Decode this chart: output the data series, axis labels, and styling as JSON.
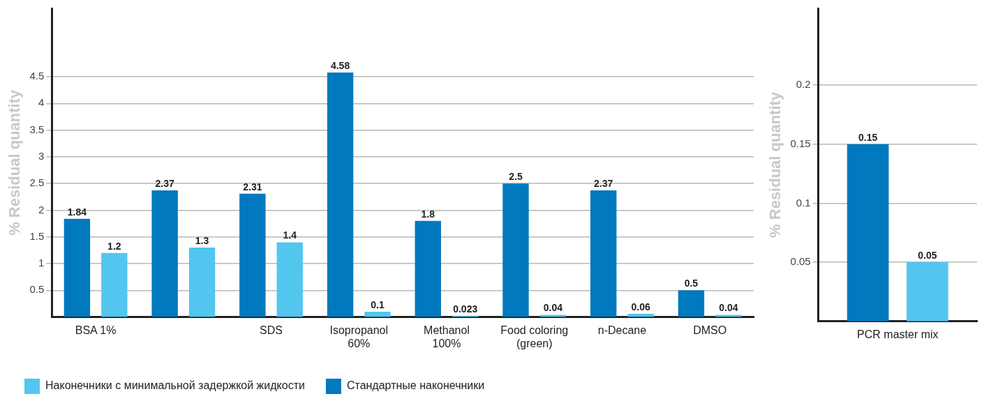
{
  "chart_data": [
    {
      "type": "bar",
      "ylabel": "% Residual quantity",
      "categories": [
        "BSA 1%",
        null,
        "SDS",
        "Isopropanol 60%",
        "Methanol 100%",
        "Food coloring (green)",
        "n-Decane",
        "DMSO"
      ],
      "series": [
        {
          "name": "Стандартные наконечники",
          "color": "#0079bf",
          "values": [
            1.84,
            2.37,
            2.31,
            4.58,
            1.8,
            2.5,
            2.37,
            0.5
          ]
        },
        {
          "name": "Наконечники с минимальной задержкой жидкости",
          "color": "#52c6ef",
          "values": [
            1.2,
            1.3,
            1.4,
            0.1,
            0.023,
            0.04,
            0.06,
            0.04
          ]
        }
      ],
      "ylim": [
        0,
        5.78
      ],
      "yticks": [
        0.5,
        1,
        1.5,
        2,
        2.5,
        3,
        3.5,
        4,
        4.5
      ],
      "grid": "y",
      "legend": "bottom",
      "data_labels": true
    },
    {
      "type": "bar",
      "ylabel": "% Residual quantity",
      "categories": [
        "PCR master mix"
      ],
      "series": [
        {
          "color": "#0079bf",
          "values": [
            0.15
          ]
        },
        {
          "color": "#52c6ef",
          "values": [
            0.05
          ]
        }
      ],
      "ylim": [
        0,
        0.265
      ],
      "yticks": [
        0.05,
        0.1,
        0.15,
        0.2
      ],
      "grid": "y",
      "data_labels": true
    }
  ]
}
